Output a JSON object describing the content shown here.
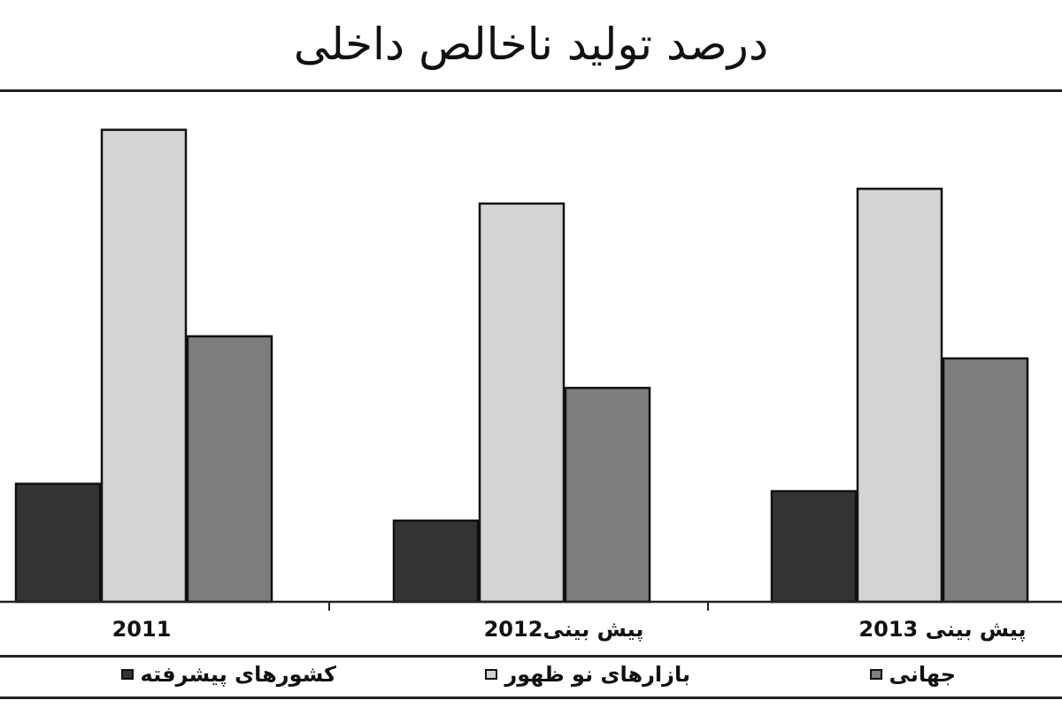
{
  "chart_data": {
    "type": "bar",
    "title": "درصد تولید ناخالص داخلی",
    "categories": [
      "2011",
      "پیش بینی2012",
      "پیش بینی 2013"
    ],
    "series": [
      {
        "name": "کشورهای پیشرفته",
        "color": "#333333",
        "values": [
          1.6,
          1.1,
          1.5
        ]
      },
      {
        "name": "بازارهای نو ظهور",
        "color": "#d4d4d4",
        "values": [
          6.4,
          5.4,
          5.6
        ]
      },
      {
        "name": "جهانی",
        "color": "#7e7e7e",
        "values": [
          3.6,
          2.9,
          3.3
        ]
      }
    ],
    "ylim": [
      0,
      6.6
    ],
    "grid": false,
    "legend": "bottom"
  }
}
